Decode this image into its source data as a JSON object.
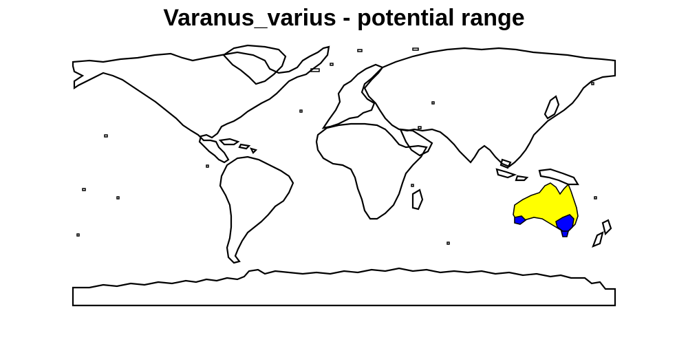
{
  "title": "Varanus_varius - potential range",
  "colors": {
    "background": "#ffffff",
    "coastline": "#000000",
    "range_suitable": "#ffff00",
    "range_occupied": "#0000ff"
  },
  "legend": []
}
